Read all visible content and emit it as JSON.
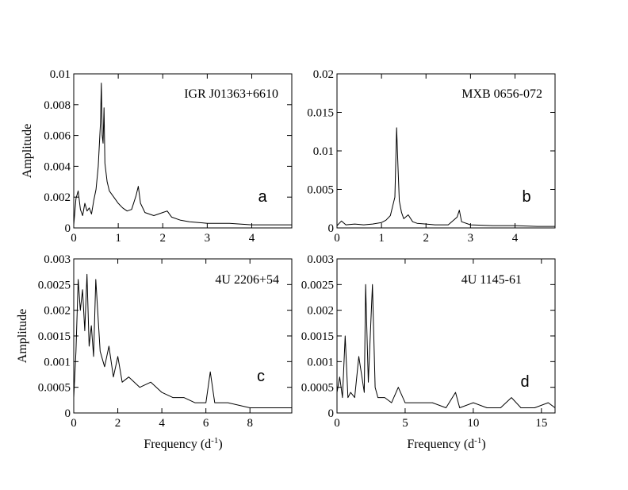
{
  "figure": {
    "y_axis_label": "Amplitude",
    "x_axis_label_main": "Frequency (d",
    "x_axis_label_sup": "-1",
    "x_axis_label_close": ")"
  },
  "chart_data": [
    {
      "type": "line",
      "panel": "a",
      "source": "IGR J01363+6610",
      "xlim": [
        0,
        4.9
      ],
      "ylim": [
        0,
        0.01
      ],
      "x_ticks": [
        0,
        1,
        2,
        3,
        4
      ],
      "y_ticks": [
        0,
        0.002,
        0.004,
        0.006,
        0.008,
        0.01
      ],
      "y_tick_labels": [
        "0",
        "0.002",
        "0.004",
        "0.006",
        "0.008",
        "0.01"
      ],
      "ylabel": "Amplitude",
      "xlabel": "",
      "series": [
        {
          "x": [
            0.0,
            0.05,
            0.1,
            0.15,
            0.2,
            0.25,
            0.3,
            0.35,
            0.4,
            0.45,
            0.5,
            0.55,
            0.6,
            0.62,
            0.64,
            0.66,
            0.68,
            0.7,
            0.75,
            0.8,
            0.9,
            1.0,
            1.1,
            1.2,
            1.3,
            1.4,
            1.45,
            1.5,
            1.6,
            1.8,
            2.0,
            2.1,
            2.2,
            2.4,
            2.6,
            3.0,
            3.5,
            4.0,
            4.5,
            4.9
          ],
          "y": [
            0.0002,
            0.0019,
            0.0024,
            0.0012,
            0.0008,
            0.0016,
            0.0011,
            0.0013,
            0.0009,
            0.0018,
            0.0025,
            0.004,
            0.0068,
            0.0094,
            0.006,
            0.0055,
            0.0078,
            0.0042,
            0.003,
            0.0024,
            0.002,
            0.0016,
            0.0013,
            0.0011,
            0.0012,
            0.0021,
            0.0027,
            0.0016,
            0.001,
            0.0008,
            0.001,
            0.0011,
            0.0007,
            0.0005,
            0.0004,
            0.0003,
            0.0003,
            0.0002,
            0.0002,
            0.0002
          ]
        }
      ]
    },
    {
      "type": "line",
      "panel": "b",
      "source": "MXB 0656-072",
      "xlim": [
        0,
        4.9
      ],
      "ylim": [
        0,
        0.02
      ],
      "x_ticks": [
        0,
        1,
        2,
        3,
        4
      ],
      "y_ticks": [
        0,
        0.005,
        0.01,
        0.015,
        0.02
      ],
      "y_tick_labels": [
        "0",
        "0.005",
        "0.01",
        "0.015",
        "0.02"
      ],
      "xlabel": "",
      "ylabel": "",
      "series": [
        {
          "x": [
            0.0,
            0.1,
            0.2,
            0.4,
            0.6,
            0.8,
            1.0,
            1.1,
            1.2,
            1.3,
            1.34,
            1.37,
            1.4,
            1.45,
            1.5,
            1.6,
            1.7,
            1.8,
            2.0,
            2.2,
            2.5,
            2.7,
            2.75,
            2.8,
            3.0,
            3.5,
            4.0,
            4.5,
            4.9
          ],
          "y": [
            0.0003,
            0.0009,
            0.0004,
            0.0005,
            0.0004,
            0.0005,
            0.0007,
            0.001,
            0.0016,
            0.004,
            0.013,
            0.008,
            0.0035,
            0.002,
            0.0012,
            0.0017,
            0.0008,
            0.0006,
            0.0005,
            0.0004,
            0.0004,
            0.0014,
            0.0023,
            0.0008,
            0.0004,
            0.0003,
            0.0003,
            0.0002,
            0.0002
          ]
        }
      ]
    },
    {
      "type": "line",
      "panel": "c",
      "source": "4U 2206+54",
      "xlim": [
        0,
        9.9
      ],
      "ylim": [
        0,
        0.003
      ],
      "x_ticks": [
        0,
        2,
        4,
        6,
        8
      ],
      "y_ticks": [
        0,
        0.0005,
        0.001,
        0.0015,
        0.002,
        0.0025,
        0.003
      ],
      "y_tick_labels": [
        "0",
        "0.0005",
        "0.001",
        "0.0015",
        "0.002",
        "0.0025",
        "0.003"
      ],
      "ylabel": "Amplitude",
      "xlabel": "Frequency (d-1)",
      "series": [
        {
          "x": [
            0.0,
            0.1,
            0.2,
            0.3,
            0.4,
            0.5,
            0.6,
            0.7,
            0.8,
            0.9,
            1.0,
            1.2,
            1.4,
            1.6,
            1.8,
            2.0,
            2.2,
            2.5,
            3.0,
            3.5,
            4.0,
            4.5,
            5.0,
            5.5,
            6.0,
            6.2,
            6.4,
            7.0,
            8.0,
            9.0,
            9.9
          ],
          "y": [
            0.0003,
            0.0012,
            0.0026,
            0.002,
            0.0024,
            0.0016,
            0.0027,
            0.0013,
            0.0017,
            0.0011,
            0.0026,
            0.0012,
            0.0009,
            0.0013,
            0.0007,
            0.0011,
            0.0006,
            0.0007,
            0.0005,
            0.0006,
            0.0004,
            0.0003,
            0.0003,
            0.0002,
            0.0002,
            0.0008,
            0.0002,
            0.0002,
            0.0001,
            0.0001,
            0.0001
          ]
        }
      ]
    },
    {
      "type": "line",
      "panel": "d",
      "source": "4U 1145-61",
      "xlim": [
        0,
        16
      ],
      "ylim": [
        0,
        0.003
      ],
      "x_ticks": [
        0,
        5,
        10,
        15
      ],
      "y_ticks": [
        0,
        0.0005,
        0.001,
        0.0015,
        0.002,
        0.0025,
        0.003
      ],
      "y_tick_labels": [
        "0",
        "0.0005",
        "0.001",
        "0.0015",
        "0.002",
        "0.0025",
        "0.003"
      ],
      "xlabel": "Frequency (d-1)",
      "ylabel": "",
      "series": [
        {
          "x": [
            0.0,
            0.2,
            0.4,
            0.6,
            0.8,
            1.0,
            1.3,
            1.6,
            2.0,
            2.1,
            2.3,
            2.6,
            2.8,
            3.0,
            3.5,
            4.0,
            4.5,
            5.0,
            6.0,
            7.0,
            8.0,
            8.7,
            9.0,
            10.0,
            11.0,
            12.0,
            12.8,
            13.5,
            14.5,
            15.5,
            16.0
          ],
          "y": [
            0.0004,
            0.0007,
            0.0003,
            0.0015,
            0.0003,
            0.0004,
            0.0003,
            0.0011,
            0.0004,
            0.0025,
            0.0006,
            0.0025,
            0.0005,
            0.0003,
            0.0003,
            0.0002,
            0.0005,
            0.0002,
            0.0002,
            0.0002,
            0.0001,
            0.0004,
            0.0001,
            0.0002,
            0.0001,
            0.0001,
            0.0003,
            0.0001,
            0.0001,
            0.0002,
            0.0001
          ]
        }
      ]
    }
  ]
}
